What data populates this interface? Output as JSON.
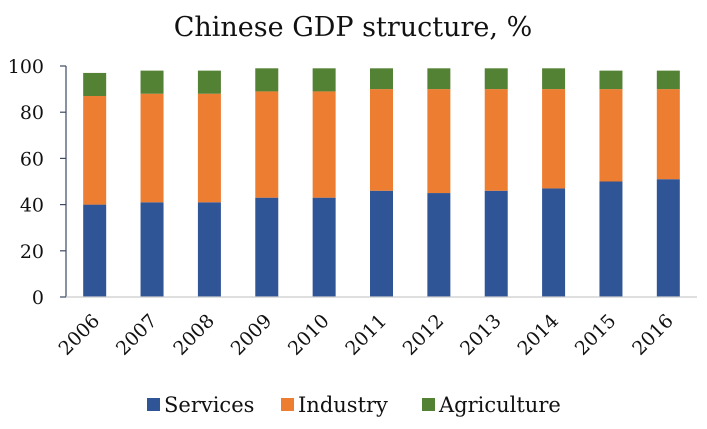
{
  "chart_data": {
    "type": "bar",
    "stacked": true,
    "title": "Chinese GDP structure, %",
    "xlabel": "",
    "ylabel": "",
    "ylim": [
      0,
      100
    ],
    "yticks": [
      "0",
      "20",
      "40",
      "60",
      "80",
      "100"
    ],
    "ytick_values": [
      0,
      20,
      40,
      60,
      80,
      100
    ],
    "categories": [
      "2006",
      "2007",
      "2008",
      "2009",
      "2010",
      "2011",
      "2012",
      "2013",
      "2014",
      "2015",
      "2016"
    ],
    "series": [
      {
        "name": "Services",
        "color": "#2F5597",
        "values": [
          40,
          41,
          41,
          43,
          43,
          46,
          45,
          46,
          47,
          50,
          51
        ]
      },
      {
        "name": "Industry",
        "color": "#ED7D31",
        "values": [
          47,
          47,
          47,
          46,
          46,
          44,
          45,
          44,
          43,
          40,
          39
        ]
      },
      {
        "name": "Agriculture",
        "color": "#548235",
        "values": [
          10,
          10,
          10,
          10,
          10,
          9,
          9,
          9,
          9,
          8,
          8
        ]
      }
    ],
    "legend_position": "bottom",
    "grid": false
  }
}
